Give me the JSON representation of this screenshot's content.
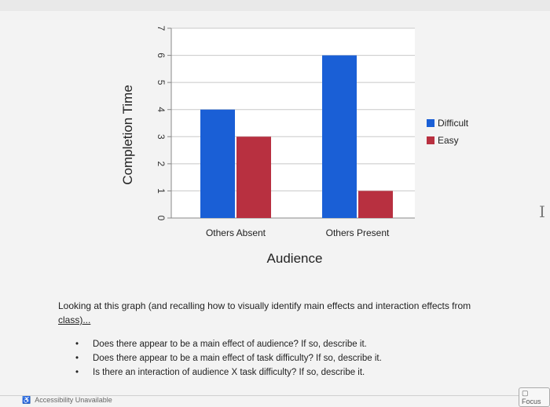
{
  "chart_data": {
    "type": "bar",
    "categories": [
      "Others Absent",
      "Others Present"
    ],
    "series": [
      {
        "name": "Difficult",
        "values": [
          4,
          6
        ],
        "color": "#1a5fd6"
      },
      {
        "name": "Easy",
        "values": [
          3,
          1
        ],
        "color": "#b83040"
      }
    ],
    "xlabel": "Audience",
    "ylabel": "Completion Time",
    "ylim": [
      0,
      7
    ],
    "yticks": [
      0,
      1,
      2,
      3,
      4,
      5,
      6,
      7
    ],
    "grid": true,
    "legend": "right"
  },
  "question": {
    "text": "Looking at this graph (and recalling how to visually identify main effects and interaction effects from",
    "link_text": "class)..."
  },
  "bullets": [
    "Does there appear to be a main effect of audience? If so, describe it.",
    "Does there appear to be a main effect of task difficulty? If so, describe it.",
    "Is there an interaction of audience X task difficulty? If so, describe it."
  ],
  "status_bar": {
    "accessibility": "Accessibility Unavailable",
    "focus_label": "Focus"
  },
  "icons": {
    "cursor": "text-cursor-icon",
    "accessibility": "accessibility-icon",
    "focus": "focus-icon"
  }
}
